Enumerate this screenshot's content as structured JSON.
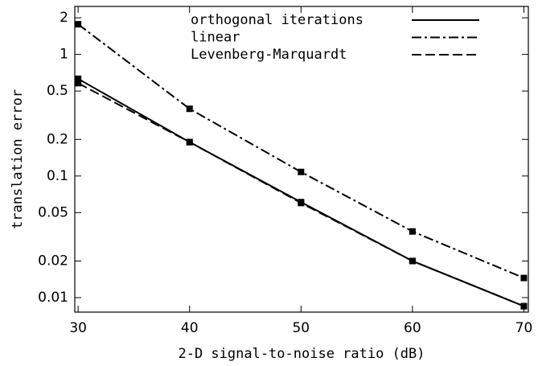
{
  "chart_data": {
    "type": "line",
    "xlabel": "2-D signal-to-noise ratio (dB)",
    "ylabel": "translation error",
    "x": [
      30,
      40,
      50,
      60,
      70
    ],
    "series": [
      {
        "name": "orthogonal iterations",
        "color": "#000000",
        "dash": "solid",
        "values": [
          0.63,
          0.19,
          0.061,
          0.02,
          0.0085
        ]
      },
      {
        "name": "linear",
        "color": "#000000",
        "dash": "dashdot",
        "values": [
          1.77,
          0.357,
          0.108,
          0.035,
          0.0145
        ]
      },
      {
        "name": "Levenberg-Marquardt",
        "color": "#000000",
        "dash": "dashed",
        "values": [
          0.58,
          0.19,
          0.06,
          0.02,
          0.0085
        ]
      }
    ],
    "xlim": [
      29.7,
      70.4
    ],
    "xticks": [
      30,
      40,
      50,
      60,
      70
    ],
    "ylim": [
      0.0076,
      2.48
    ],
    "yticks": [
      0.01,
      0.02,
      0.05,
      0.1,
      0.2,
      0.5,
      1,
      2
    ],
    "yscale": "log",
    "markers": "square",
    "legend": "top"
  }
}
